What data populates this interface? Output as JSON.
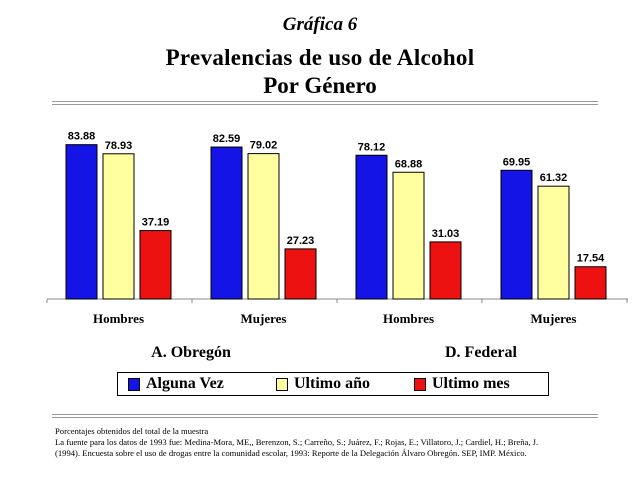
{
  "heading": "Gráfica 6",
  "title_line1": "Prevalencias de uso de Alcohol",
  "title_line2": "Por Género",
  "colors": {
    "alguna_vez": "#1414e6",
    "ultimo_anio": "#ffffa0",
    "ultimo_mes": "#ee1111"
  },
  "chart_data": {
    "type": "bar",
    "title": "Prevalencias de uso de Alcohol Por Género",
    "categories": [
      "Hombres",
      "Mujeres",
      "Hombres",
      "Mujeres"
    ],
    "groups": [
      "A. Obregón",
      "D. Federal"
    ],
    "series": [
      {
        "name": "Alguna Vez",
        "values": [
          83.88,
          82.59,
          78.12,
          69.95
        ]
      },
      {
        "name": "Ultimo año",
        "values": [
          78.93,
          79.02,
          68.88,
          61.32
        ]
      },
      {
        "name": "Ultimo mes",
        "values": [
          37.19,
          27.23,
          31.03,
          17.54
        ]
      }
    ],
    "ylim": [
      0,
      100
    ],
    "legend_position": "bottom",
    "grid": false
  },
  "footnote": {
    "line1": "Porcentajes obtenidos del total de la muestra",
    "line2": "La fuente para los datos de 1993 fue: Medina-Mora, ME,, Berenzon, S.; Carreño, S.; Juárez, F.; Rojas, E.; Villatoro, J.; Cardiel, H.; Breña, J.",
    "line3": "(1994). Encuesta sobre el uso de drogas entre la comunidad escolar, 1993: Reporte de la Delegación Álvaro Obregón. SEP, IMP. México."
  }
}
